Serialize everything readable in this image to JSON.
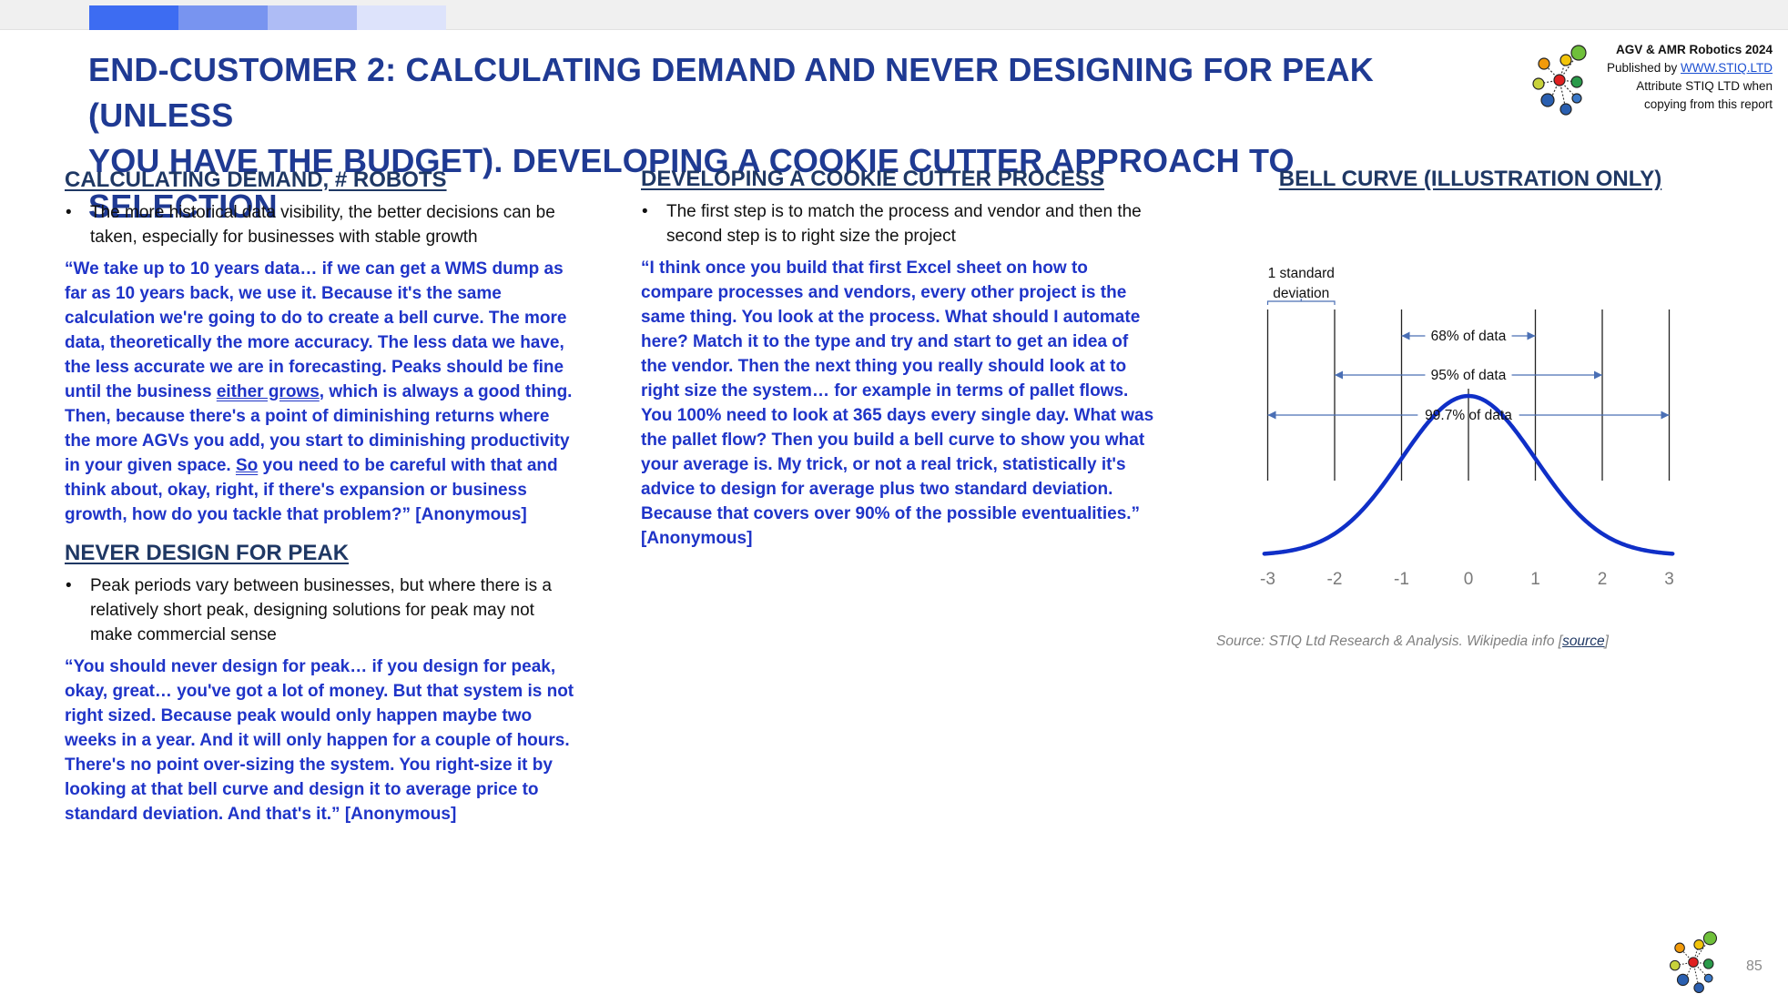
{
  "accent_colors": {
    "title": "#1f3a93",
    "quote": "#1f34c8",
    "curve": "#0f2fc7",
    "heading": "#1f3864"
  },
  "topbar_colors": [
    "#3d6cf2",
    "#7894f0",
    "#aebcf5",
    "#dde3fb"
  ],
  "title": {
    "line1": "END-CUSTOMER 2: CALCULATING DEMAND AND NEVER DESIGNING FOR PEAK (UNLESS",
    "line2": "YOU HAVE THE BUDGET). DEVELOPING A COOKIE CUTTER APPROACH TO SELECTION"
  },
  "brand": {
    "line1": "AGV & AMR Robotics 2024",
    "published_prefix": "Published by ",
    "published_link": "WWW.STIQ.LTD",
    "line3": "Attribute STIQ LTD when",
    "line4": "copying from this report",
    "logo_icon": "stiq-logo-icon"
  },
  "col1": {
    "heading": "CALCULATING DEMAND, # ROBOTS",
    "bullet": "The more historical data visibility, the better decisions can be taken, especially for businesses with stable growth",
    "quote_parts": [
      "“We take up to 10 years data… if we can get a WMS dump as far as 10 years back, we use it. Because it's the same calculation we're going to do to create a bell curve. The more data, theoretically the more accuracy. The less data we have, the less accurate we are in forecasting. Peaks should be fine until the business ",
      "either grows",
      ", which is always a good thing. Then, because there's a point of diminishing returns where the more AGVs you add, you start to diminishing productivity in your given space. ",
      "So",
      " you need to be careful with that and think about, okay, right, if there's expansion or business growth, how do you tackle that problem?” [Anonymous]"
    ],
    "heading2": "NEVER DESIGN FOR PEAK",
    "bullet2": "Peak periods vary between businesses, but where there is a relatively short peak, designing solutions for peak may not make commercial sense",
    "quote2": "“You should never design for peak… if you design for peak, okay, great… you've got a lot of money. But that system is not right sized. Because peak would only happen maybe two weeks in a year. And it will only happen for a couple of hours. There's no point over-sizing the system. You right-size it by looking at that bell curve and design it to average price to standard deviation. And that's it.” [Anonymous]"
  },
  "col2": {
    "heading": "DEVELOPING A COOKIE CUTTER PROCESS",
    "bullet": "The first step is to match the process and vendor and then the second step is to right size the project",
    "quote": "“I think once you build that first Excel sheet on how to compare processes and vendors, every other project is the same thing. You look at the process. What should I automate here? Match it to the type and try and start to get an idea of the vendor. Then the next thing you really should look at to right size the system… for example in terms of pallet flows. You 100% need to look at 365 days every single day. What was the pallet flow? Then you build a bell curve to show you what your average is. My trick, or not a real trick, statistically it's advice to design for average plus two standard deviation. Because that covers over 90% of the possible eventualities.” [Anonymous]"
  },
  "chart_data": {
    "type": "line",
    "title": "BELL CURVE (ILLUSTRATION ONLY)",
    "xlabel": "",
    "ylabel": "",
    "xlim": [
      -3,
      3
    ],
    "x_ticks": [
      "-3",
      "-2",
      "-1",
      "0",
      "1",
      "2",
      "3"
    ],
    "series": [
      {
        "function": "standard normal density",
        "mean": 0,
        "sd": 1,
        "x_range": [
          -3.05,
          3.05
        ]
      }
    ],
    "annotations": [
      {
        "label": "1 standard deviation",
        "line1": "1 standard",
        "line2": "deviation",
        "from": -3,
        "to": -2
      },
      {
        "label": "68% of data",
        "from": -1,
        "to": 1
      },
      {
        "label": "95% of data",
        "from": -2,
        "to": 2
      },
      {
        "label": "99.7% of data",
        "from": -3,
        "to": 3
      }
    ],
    "vertical_lines": [
      -3,
      -2,
      -1,
      0,
      1,
      2,
      3
    ],
    "grid": false,
    "legend": "none"
  },
  "source": {
    "text": "Source: STIQ Ltd Research & Analysis. Wikipedia info [",
    "link": "source",
    "end": "]"
  },
  "footer": {
    "page_number": "85",
    "logo_icon": "stiq-logo-icon"
  }
}
